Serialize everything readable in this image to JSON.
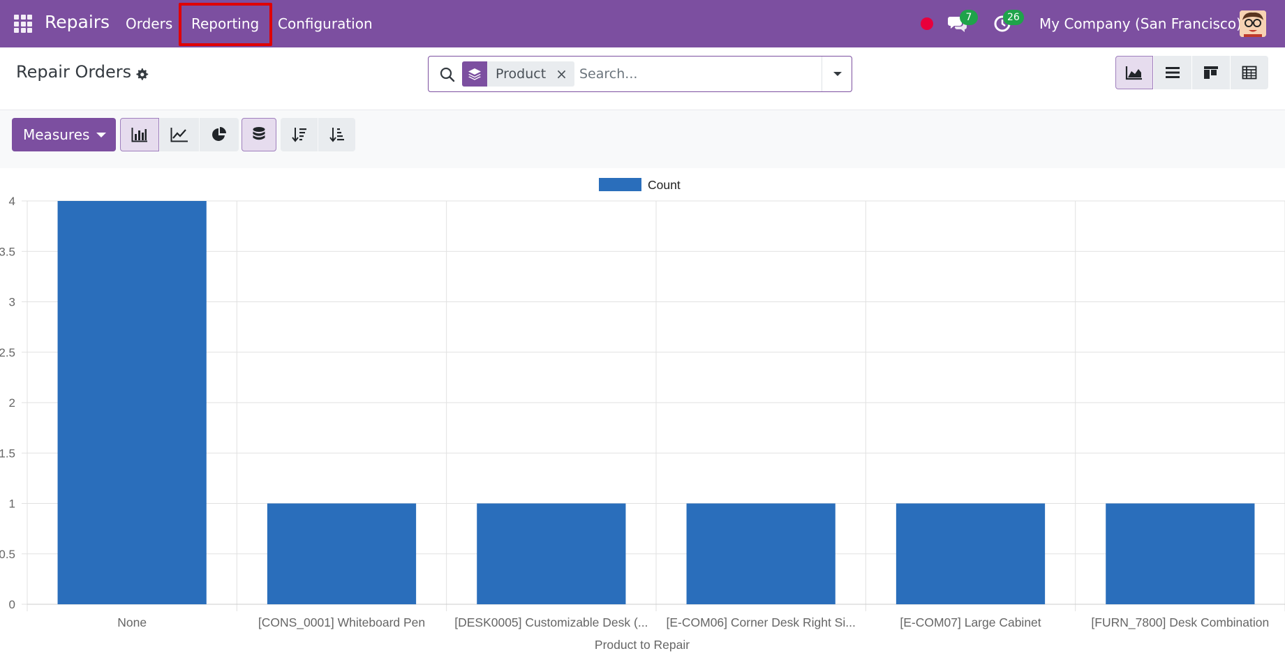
{
  "navbar": {
    "brand": "Repairs",
    "menu": [
      {
        "label": "Orders"
      },
      {
        "label": "Reporting"
      },
      {
        "label": "Configuration"
      }
    ],
    "messages_count": "7",
    "activities_count": "26",
    "company": "My Company (San Francisco)",
    "accent_color": "#7c4fa0"
  },
  "control": {
    "title": "Repair Orders",
    "search": {
      "facet_label": "Product",
      "facet_remove": "×",
      "placeholder": "Search..."
    },
    "views": [
      "graph",
      "list",
      "kanban",
      "pivot"
    ],
    "active_view": "graph"
  },
  "toolbar": {
    "measures_label": "Measures",
    "chart_types": [
      "bar-chart-icon",
      "line-chart-icon",
      "pie-chart-icon"
    ],
    "active_chart_type": "bar-chart-icon",
    "stacked_active": true,
    "sort_buttons": [
      "sort-descending-icon",
      "sort-ascending-icon"
    ]
  },
  "chart_data": {
    "type": "bar",
    "categories": [
      "None",
      "[CONS_0001] Whiteboard Pen",
      "[DESK0005] Customizable Desk (...",
      "[E-COM06] Corner Desk Right Si...",
      "[E-COM07] Large Cabinet",
      "[FURN_7800] Desk Combination"
    ],
    "series": [
      {
        "name": "Count",
        "values": [
          4,
          1,
          1,
          1,
          1,
          1
        ],
        "color": "#2a6ebb"
      }
    ],
    "xlabel": "Product to Repair",
    "ylabel": "",
    "ylim": [
      0,
      4
    ],
    "yticks": [
      "0",
      "0.5",
      "1",
      "1.5",
      "2",
      "2.5",
      "3",
      "3.5",
      "4"
    ],
    "grid": true,
    "legend": "top-center"
  }
}
